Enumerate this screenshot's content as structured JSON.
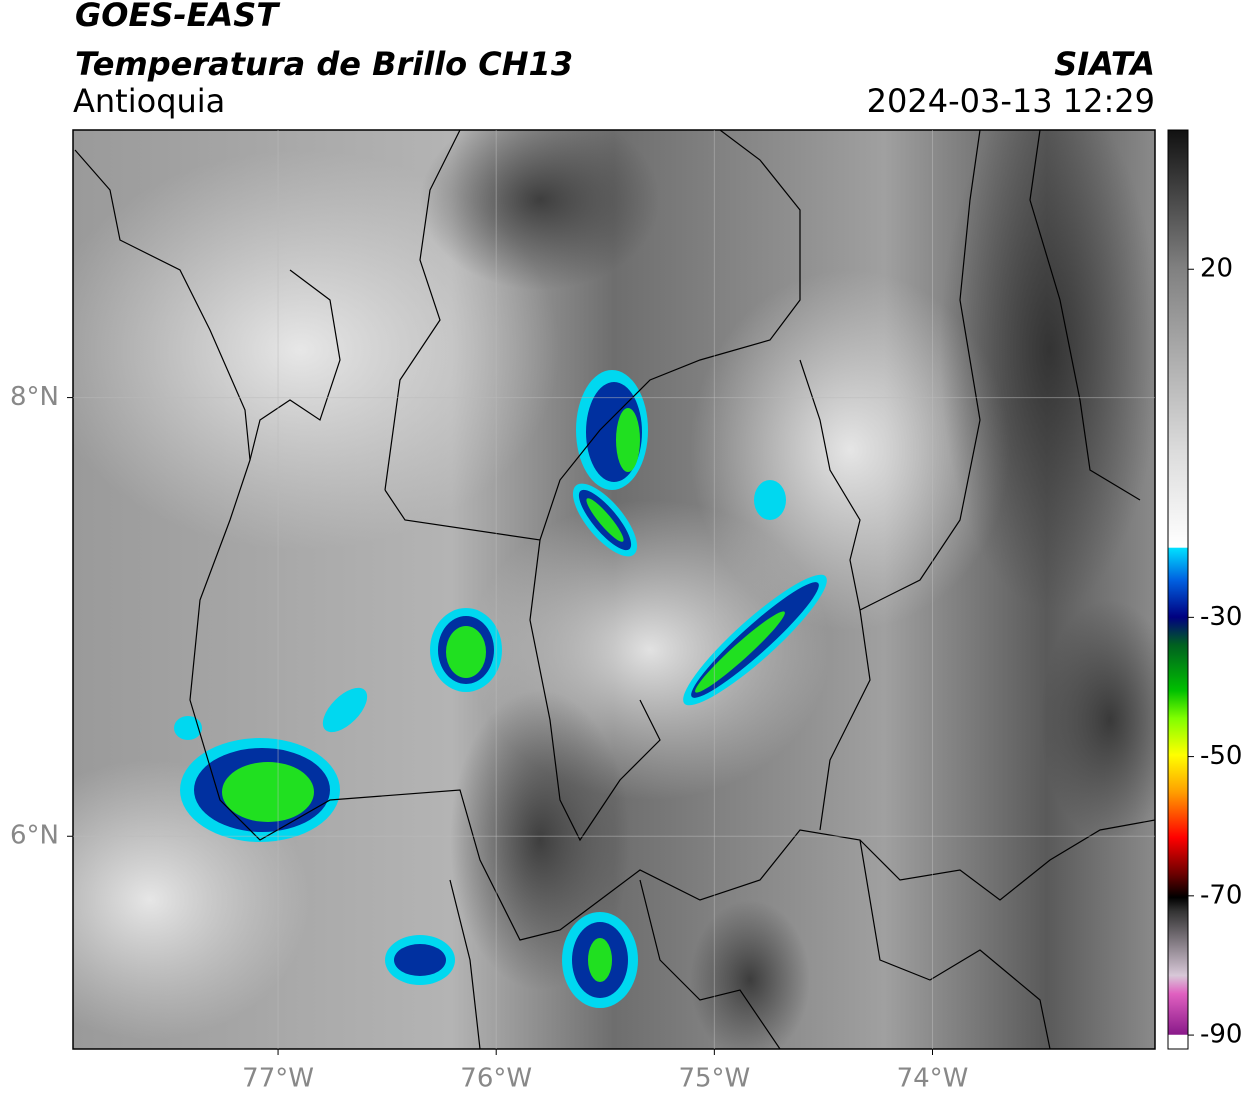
{
  "header": {
    "satellite": "GOES-EAST",
    "product": "Temperatura de Brillo CH13",
    "region": "Antioquia",
    "source": "SIATA",
    "datetime": "2024-03-13 12:29"
  },
  "map": {
    "lon_range": [
      -77.94,
      -72.98
    ],
    "lat_range": [
      5.03,
      9.22
    ],
    "lon_ticks": [
      {
        "value": -77,
        "label": "77°W"
      },
      {
        "value": -76,
        "label": "76°W"
      },
      {
        "value": -75,
        "label": "75°W"
      },
      {
        "value": -74,
        "label": "74°W"
      }
    ],
    "lat_ticks": [
      {
        "value": 8,
        "label": "8°N"
      },
      {
        "value": 6,
        "label": "6°N"
      }
    ],
    "grid": true
  },
  "colorbar": {
    "range": [
      -92,
      40
    ],
    "ticks": [
      20,
      -30,
      -50,
      -70,
      -90
    ]
  }
}
